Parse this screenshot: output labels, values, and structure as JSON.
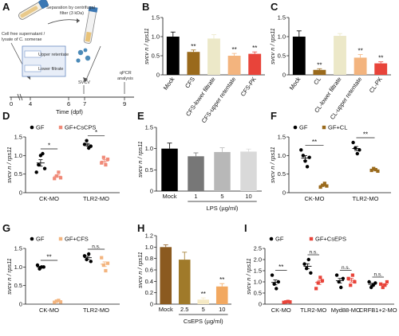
{
  "panel_labels": [
    "A",
    "B",
    "C",
    "D",
    "E",
    "F",
    "G",
    "H",
    "I"
  ],
  "ylabel": "svcv n / rps11",
  "schematic": {
    "texts": [
      "Separation by centrifugal",
      "filter (3 kDa)",
      "Cell free supernatant /",
      "lysate of C. somerae",
      "Upper retentate",
      "Lower filtrate",
      "SVCV",
      "qPCR",
      "analysis"
    ],
    "timeline_ticks": [
      "0",
      "4",
      "6",
      "7",
      "9"
    ],
    "timeline_label": "Time (dpf)"
  },
  "colors": {
    "black": "#000000",
    "brown": "#9a6a1c",
    "cream": "#ece8c8",
    "peach": "#f3b47e",
    "salmon": "#f08a78",
    "red": "#e8443a",
    "darkbrown": "#8b5a20",
    "lightgrey": "#d9d9d9",
    "midgrey": "#b8b8b8",
    "grey": "#999999",
    "olive": "#a07a2a",
    "lightcream": "#f5e9c4",
    "orange": "#f2a860"
  },
  "chart_data": [
    {
      "panel": "B",
      "type": "bar",
      "categories": [
        "Mock",
        "CFS",
        "CFS-lower filtrate",
        "CFS-upper retentate",
        "CFS-PK"
      ],
      "values": [
        1.0,
        0.6,
        0.95,
        0.5,
        0.55
      ],
      "errors": [
        0.12,
        0.05,
        0.1,
        0.06,
        0.05
      ],
      "sig": [
        "",
        "**",
        "",
        "**",
        "**"
      ],
      "colors": [
        "#000000",
        "#9a6a1c",
        "#ece8c8",
        "#f3b47e",
        "#e8443a"
      ],
      "ylim": [
        0,
        1.5
      ],
      "yticks": [
        0,
        0.5,
        1.0,
        1.5
      ],
      "ylabel": "svcv n / rps11"
    },
    {
      "panel": "C",
      "type": "bar",
      "categories": [
        "Mock",
        "CL",
        "CL-lower filtrate",
        "CL-upper retentate",
        "CL-PK"
      ],
      "values": [
        1.0,
        0.13,
        1.02,
        0.45,
        0.3
      ],
      "errors": [
        0.15,
        0.03,
        0.06,
        0.08,
        0.04
      ],
      "sig": [
        "",
        "**",
        "",
        "**",
        "**"
      ],
      "colors": [
        "#000000",
        "#9a6a1c",
        "#ece8c8",
        "#f3b47e",
        "#e8443a"
      ],
      "ylim": [
        0,
        1.5
      ],
      "yticks": [
        0,
        0.5,
        1.0,
        1.5
      ],
      "ylabel": "svcv n / rps11"
    },
    {
      "panel": "D",
      "type": "scatter",
      "groups": [
        "CK-MO",
        "TLR2-MO"
      ],
      "series": [
        {
          "name": "GF",
          "color": "#000000",
          "marker": "circle",
          "points": [
            [
              0.55,
              0.75,
              1.0,
              1.05,
              0.65
            ],
            [
              1.3,
              1.4,
              1.2,
              1.25
            ]
          ]
        },
        {
          "name": "GF+CsCPS",
          "color": "#f08a78",
          "marker": "square",
          "points": [
            [
              0.38,
              0.45,
              0.55,
              0.4
            ],
            [
              0.8,
              0.95,
              0.75,
              0.9
            ]
          ]
        }
      ],
      "sig": [
        "*",
        "*"
      ],
      "ylim": [
        0,
        1.5
      ],
      "yticks": [
        0,
        0.5,
        1.0,
        1.5
      ],
      "ylabel": "svcv n / rps11"
    },
    {
      "panel": "E",
      "type": "bar",
      "categories": [
        "Mock",
        "1",
        "5",
        "10"
      ],
      "values": [
        1.0,
        0.82,
        0.92,
        0.93
      ],
      "errors": [
        0.13,
        0.08,
        0.1,
        0.06
      ],
      "colors": [
        "#000000",
        "#777777",
        "#b8b8b8",
        "#d9d9d9"
      ],
      "ylim": [
        0,
        1.5
      ],
      "yticks": [
        0,
        0.5,
        1.0,
        1.5
      ],
      "xlabel": "LPS (µg/ml)",
      "ylabel": "svcv n / rps11"
    },
    {
      "panel": "F",
      "type": "scatter",
      "groups": [
        "CK-MO",
        "TLR2-MO"
      ],
      "series": [
        {
          "name": "GF",
          "color": "#000000",
          "marker": "circle",
          "points": [
            [
              1.15,
              1.0,
              0.85,
              0.7,
              0.95
            ],
            [
              1.35,
              1.2,
              1.05,
              1.15
            ]
          ]
        },
        {
          "name": "GF+CL",
          "color": "#9a6a1c",
          "marker": "square",
          "points": [
            [
              0.15,
              0.2,
              0.25,
              0.18
            ],
            [
              0.6,
              0.65,
              0.62,
              0.58
            ]
          ]
        }
      ],
      "sig": [
        "**",
        "**"
      ],
      "ylim": [
        0,
        1.5
      ],
      "yticks": [
        0,
        0.5,
        1.0,
        1.5
      ],
      "ylabel": "svcv n / rps11"
    },
    {
      "panel": "G",
      "type": "scatter",
      "groups": [
        "CK-MO",
        "TLR2-MO"
      ],
      "series": [
        {
          "name": "GF",
          "color": "#000000",
          "marker": "circle",
          "points": [
            [
              1.05,
              0.95,
              1.0,
              1.0
            ],
            [
              1.3,
              1.2,
              1.35,
              1.15
            ]
          ]
        },
        {
          "name": "GF+CFS",
          "color": "#f3b47e",
          "marker": "square",
          "points": [
            [
              0.05,
              0.08,
              0.1,
              0.06
            ],
            [
              1.25,
              1.05,
              0.9,
              1.1
            ]
          ]
        }
      ],
      "sig": [
        "**",
        "n.s."
      ],
      "ylim": [
        0,
        1.5
      ],
      "yticks": [
        0,
        0.5,
        1.0,
        1.5
      ],
      "ylabel": "svcv n / rps11"
    },
    {
      "panel": "H",
      "type": "bar",
      "categories": [
        "Mock",
        "2.5",
        "5",
        "10"
      ],
      "values": [
        1.0,
        0.78,
        0.08,
        0.31
      ],
      "errors": [
        0.04,
        0.13,
        0.03,
        0.05
      ],
      "sig": [
        "",
        "",
        "**",
        "**"
      ],
      "colors": [
        "#8b5a20",
        "#a07a2a",
        "#f5e9c4",
        "#f2a860"
      ],
      "ylim": [
        0,
        1.2
      ],
      "yticks": [
        0,
        0.2,
        0.4,
        0.6,
        0.8,
        1.0,
        1.2
      ],
      "xlabel": "CsEPS (µg/ml)",
      "ylabel": "svcv n / rps11"
    },
    {
      "panel": "I",
      "type": "scatter",
      "groups": [
        "CK-MO",
        "TLR2-MO",
        "Myd88-MO",
        "CRFB1+2-MO"
      ],
      "series": [
        {
          "name": "GF",
          "color": "#000000",
          "marker": "circle",
          "points": [
            [
              1.3,
              0.9,
              0.7,
              1.0
            ],
            [
              1.8,
              1.6,
              2.0,
              1.4
            ],
            [
              1.3,
              1.0,
              0.75,
              1.15
            ],
            [
              1.0,
              0.75,
              0.85,
              0.95
            ]
          ]
        },
        {
          "name": "GF+CsEPS",
          "color": "#e8443a",
          "marker": "square",
          "points": [
            [
              0.08,
              0.1,
              0.12,
              0.1
            ],
            [
              0.7,
              0.95,
              1.2,
              1.05
            ],
            [
              1.15,
              0.85,
              1.3,
              1.0
            ],
            [
              0.9,
              0.75,
              0.85,
              1.0
            ]
          ]
        }
      ],
      "sig": [
        "**",
        "n.s.",
        "n.s.",
        "n.s."
      ],
      "ylim": [
        0,
        2.5
      ],
      "yticks": [
        0,
        0.5,
        1.0,
        1.5,
        2.0,
        2.5
      ],
      "ylabel": "svcv n / rps11"
    }
  ]
}
